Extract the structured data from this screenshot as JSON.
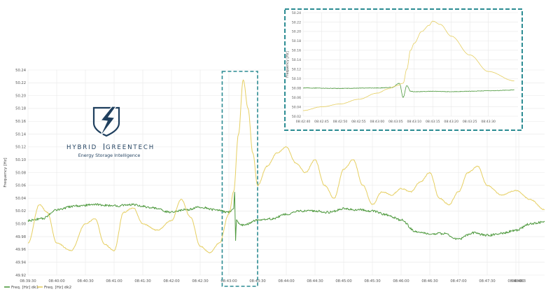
{
  "colors": {
    "series1": "#4f9a3f",
    "series2": "#e6cf62",
    "highlight_box": "#2c8c93",
    "brand": "#1f3f5e",
    "grid": "#e8e8e8"
  },
  "logo": {
    "brand_left": "HYBRID",
    "brand_right": "GREENTECH",
    "tagline": "Energy Storage Intelligence",
    "icon": "lightning-bolt-shield-icon"
  },
  "chart_data": [
    {
      "type": "line",
      "ylabel": "Frequency [Hz]",
      "xlabel": "",
      "ylim": [
        49.92,
        50.24
      ],
      "y_ticks": [
        "49.92",
        "49.94",
        "49.96",
        "49.98",
        "50.00",
        "50.02",
        "50.04",
        "50.06",
        "50.08",
        "50.10",
        "50.12",
        "50.14",
        "50.16",
        "50.18",
        "50.20",
        "50.22",
        "50.24"
      ],
      "x_ticks": [
        "08:39:30",
        "08:40:00",
        "08:40:30",
        "08:41:00",
        "08:41:30",
        "08:42:00",
        "08:42:30",
        "08:43:00",
        "08:43:30",
        "08:44:00",
        "08:44:30",
        "08:45:00",
        "08:45:30",
        "08:46:00",
        "08:46:30",
        "08:47:00",
        "08:47:30",
        "08:48:00",
        "08:48:3"
      ],
      "xlim": [
        "08:39:30",
        "08:48:30"
      ],
      "highlight_range": [
        "08:42:53",
        "08:43:30"
      ],
      "grid": true,
      "legend_position": "bottom-left",
      "series": [
        {
          "name": "Freq. [Hz] dk1",
          "x": [
            "08:39:30",
            "08:39:45",
            "08:40:00",
            "08:40:20",
            "08:40:40",
            "08:41:00",
            "08:41:20",
            "08:41:40",
            "08:42:00",
            "08:42:15",
            "08:42:30",
            "08:42:45",
            "08:43:00",
            "08:43:05",
            "08:43:06",
            "08:43:07",
            "08:43:08",
            "08:43:10",
            "08:43:15",
            "08:43:30",
            "08:43:45",
            "08:44:00",
            "08:44:15",
            "08:44:30",
            "08:44:45",
            "08:45:00",
            "08:45:15",
            "08:45:30",
            "08:45:45",
            "08:46:00",
            "08:46:15",
            "08:46:30",
            "08:46:45",
            "08:47:00",
            "08:47:15",
            "08:47:30",
            "08:47:45",
            "08:48:00",
            "08:48:15",
            "08:48:30"
          ],
          "values": [
            50.005,
            50.008,
            50.022,
            50.028,
            50.03,
            50.028,
            50.03,
            50.025,
            50.018,
            50.022,
            50.026,
            50.022,
            50.018,
            50.025,
            50.05,
            49.975,
            50.008,
            50.0,
            49.998,
            50.006,
            50.008,
            50.015,
            50.02,
            50.02,
            50.018,
            50.024,
            50.022,
            50.02,
            50.014,
            50.006,
            49.988,
            49.984,
            49.985,
            49.976,
            49.986,
            49.982,
            49.985,
            49.99,
            50.0,
            50.003
          ]
        },
        {
          "name": "Freq. [Hz] dk2",
          "x": [
            "08:39:30",
            "08:39:42",
            "08:39:50",
            "08:40:00",
            "08:40:15",
            "08:40:30",
            "08:40:40",
            "08:40:50",
            "08:41:00",
            "08:41:10",
            "08:41:20",
            "08:41:30",
            "08:41:45",
            "08:42:00",
            "08:42:10",
            "08:42:20",
            "08:42:30",
            "08:42:40",
            "08:42:50",
            "08:43:00",
            "08:43:05",
            "08:43:10",
            "08:43:15",
            "08:43:20",
            "08:43:25",
            "08:43:30",
            "08:43:40",
            "08:43:50",
            "08:44:00",
            "08:44:10",
            "08:44:20",
            "08:44:30",
            "08:44:40",
            "08:44:50",
            "08:45:00",
            "08:45:10",
            "08:45:20",
            "08:45:30",
            "08:45:40",
            "08:45:50",
            "08:46:00",
            "08:46:10",
            "08:46:20",
            "08:46:30",
            "08:46:40",
            "08:46:50",
            "08:47:00",
            "08:47:10",
            "08:47:20",
            "08:47:30",
            "08:47:45",
            "08:48:00",
            "08:48:15",
            "08:48:30"
          ],
          "values": [
            49.97,
            50.03,
            50.018,
            49.97,
            49.958,
            50.0,
            50.008,
            49.968,
            49.958,
            50.018,
            50.025,
            50.0,
            49.99,
            50.005,
            50.038,
            50.01,
            49.965,
            49.955,
            49.97,
            50.015,
            50.05,
            50.14,
            50.225,
            50.18,
            50.11,
            50.06,
            50.09,
            50.11,
            50.12,
            50.095,
            50.08,
            50.1,
            50.06,
            50.04,
            50.085,
            50.1,
            50.06,
            50.03,
            50.05,
            50.045,
            50.055,
            50.05,
            50.065,
            50.08,
            50.04,
            50.03,
            50.05,
            50.08,
            50.09,
            50.06,
            50.045,
            50.052,
            50.038,
            50.022
          ]
        }
      ]
    },
    {
      "type": "line",
      "ylabel": "Frequency [Hz]",
      "xlabel": "",
      "ylim": [
        50.02,
        50.24
      ],
      "y_ticks": [
        "50.02",
        "50.04",
        "50.06",
        "50.08",
        "50.10",
        "50.12",
        "50.14",
        "50.16",
        "50.18",
        "50.20",
        "50.22",
        "50.24"
      ],
      "x_ticks": [
        "08:42:40",
        "08:42:45",
        "08:42:50",
        "08:42:55",
        "08:43:00",
        "08:43:05",
        "08:43:10",
        "08:43:15",
        "08:43:20",
        "08:43:25",
        "08:43:30"
      ],
      "xlim": [
        "08:42:40",
        "08:43:38"
      ],
      "grid": true,
      "series": [
        {
          "name": "Freq. [Hz] dk1",
          "x": [
            "08:42:40",
            "08:42:50",
            "08:43:00",
            "08:43:04",
            "08:43:06",
            "08:43:07",
            "08:43:08",
            "08:43:09",
            "08:43:10",
            "08:43:15",
            "08:43:20",
            "08:43:25",
            "08:43:30",
            "08:43:35",
            "08:43:37"
          ],
          "values": [
            50.08,
            50.079,
            50.08,
            50.081,
            50.09,
            50.06,
            50.085,
            50.073,
            50.072,
            50.073,
            50.072,
            50.073,
            50.074,
            50.075,
            50.076
          ]
        },
        {
          "name": "Freq. [Hz] dk2",
          "x": [
            "08:42:40",
            "08:42:45",
            "08:42:50",
            "08:42:55",
            "08:43:00",
            "08:43:03",
            "08:43:05",
            "08:43:07",
            "08:43:08",
            "08:43:09",
            "08:43:10",
            "08:43:12",
            "08:43:14",
            "08:43:15",
            "08:43:17",
            "08:43:20",
            "08:43:25",
            "08:43:30",
            "08:43:37"
          ],
          "values": [
            50.032,
            50.04,
            50.046,
            50.056,
            50.069,
            50.078,
            50.084,
            50.09,
            50.12,
            50.16,
            50.175,
            50.2,
            50.213,
            50.222,
            50.215,
            50.19,
            50.15,
            50.115,
            50.095
          ]
        }
      ]
    }
  ]
}
